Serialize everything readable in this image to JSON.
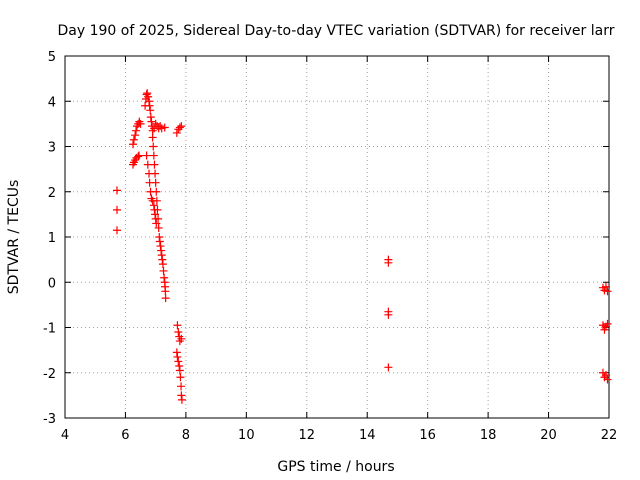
{
  "chart_data": {
    "type": "scatter",
    "title": "Day 190 of 2025, Sidereal Day-to-day VTEC variation (SDTVAR) for receiver larr",
    "xlabel": "GPS time / hours",
    "ylabel": "SDTVAR / TECUs",
    "xlim": [
      4,
      22
    ],
    "ylim": [
      -3,
      5
    ],
    "xticks": [
      4,
      6,
      8,
      10,
      12,
      14,
      16,
      18,
      20,
      22
    ],
    "yticks": [
      -3,
      -2,
      -1,
      0,
      1,
      2,
      3,
      4,
      5
    ],
    "grid": true,
    "marker": "plus",
    "color": "#ff0000",
    "series": [
      {
        "name": "SDTVAR",
        "points": [
          [
            5.72,
            2.03
          ],
          [
            5.72,
            1.6
          ],
          [
            5.72,
            1.15
          ],
          [
            6.25,
            2.6
          ],
          [
            6.28,
            2.65
          ],
          [
            6.32,
            2.7
          ],
          [
            6.36,
            2.75
          ],
          [
            6.42,
            2.78
          ],
          [
            6.45,
            2.8
          ],
          [
            6.25,
            3.05
          ],
          [
            6.28,
            3.15
          ],
          [
            6.32,
            3.25
          ],
          [
            6.35,
            3.35
          ],
          [
            6.38,
            3.45
          ],
          [
            6.42,
            3.5
          ],
          [
            6.46,
            3.55
          ],
          [
            6.5,
            3.5
          ],
          [
            6.65,
            3.9
          ],
          [
            6.68,
            4.05
          ],
          [
            6.7,
            4.15
          ],
          [
            6.72,
            4.18
          ],
          [
            6.75,
            4.1
          ],
          [
            6.78,
            4.0
          ],
          [
            6.8,
            3.9
          ],
          [
            6.82,
            3.8
          ],
          [
            6.84,
            3.65
          ],
          [
            6.86,
            3.55
          ],
          [
            6.88,
            3.45
          ],
          [
            6.9,
            3.35
          ],
          [
            6.95,
            3.4
          ],
          [
            7.0,
            3.5
          ],
          [
            7.05,
            3.45
          ],
          [
            7.1,
            3.4
          ],
          [
            7.15,
            3.45
          ],
          [
            7.2,
            3.4
          ],
          [
            7.3,
            3.42
          ],
          [
            6.7,
            2.8
          ],
          [
            6.74,
            2.6
          ],
          [
            6.78,
            2.4
          ],
          [
            6.8,
            2.2
          ],
          [
            6.83,
            2.0
          ],
          [
            6.86,
            1.85
          ],
          [
            6.9,
            1.8
          ],
          [
            6.94,
            1.7
          ],
          [
            6.96,
            1.6
          ],
          [
            6.98,
            1.5
          ],
          [
            7.0,
            1.4
          ],
          [
            7.02,
            1.3
          ],
          [
            6.9,
            3.2
          ],
          [
            6.92,
            3.0
          ],
          [
            6.94,
            2.8
          ],
          [
            6.96,
            2.6
          ],
          [
            6.98,
            2.4
          ],
          [
            7.0,
            2.2
          ],
          [
            7.02,
            2.0
          ],
          [
            7.04,
            1.8
          ],
          [
            7.06,
            1.6
          ],
          [
            7.08,
            1.4
          ],
          [
            7.1,
            1.2
          ],
          [
            7.12,
            1.0
          ],
          [
            7.14,
            0.9
          ],
          [
            7.16,
            0.8
          ],
          [
            7.18,
            0.7
          ],
          [
            7.2,
            0.6
          ],
          [
            7.22,
            0.5
          ],
          [
            7.24,
            0.4
          ],
          [
            7.26,
            0.25
          ],
          [
            7.28,
            0.1
          ],
          [
            7.3,
            0.0
          ],
          [
            7.31,
            -0.1
          ],
          [
            7.32,
            -0.2
          ],
          [
            7.33,
            -0.35
          ],
          [
            7.7,
            3.3
          ],
          [
            7.75,
            3.38
          ],
          [
            7.8,
            3.42
          ],
          [
            7.85,
            3.45
          ],
          [
            7.72,
            -0.95
          ],
          [
            7.75,
            -1.1
          ],
          [
            7.78,
            -1.2
          ],
          [
            7.8,
            -1.3
          ],
          [
            7.85,
            -1.25
          ],
          [
            7.7,
            -1.55
          ],
          [
            7.72,
            -1.65
          ],
          [
            7.75,
            -1.75
          ],
          [
            7.78,
            -1.85
          ],
          [
            7.8,
            -1.95
          ],
          [
            7.82,
            -2.1
          ],
          [
            7.84,
            -2.3
          ],
          [
            7.85,
            -2.5
          ],
          [
            7.87,
            -2.6
          ],
          [
            14.7,
            0.5
          ],
          [
            14.7,
            0.43
          ],
          [
            14.7,
            -0.65
          ],
          [
            14.7,
            -0.72
          ],
          [
            14.7,
            -1.88
          ],
          [
            21.8,
            -0.12
          ],
          [
            21.85,
            -0.18
          ],
          [
            21.9,
            -0.1
          ],
          [
            21.95,
            -0.2
          ],
          [
            21.8,
            -0.95
          ],
          [
            21.85,
            -1.05
          ],
          [
            21.9,
            -0.98
          ],
          [
            21.95,
            -0.92
          ],
          [
            21.8,
            -2.0
          ],
          [
            21.85,
            -2.1
          ],
          [
            21.9,
            -2.05
          ],
          [
            21.95,
            -2.15
          ]
        ]
      }
    ]
  }
}
